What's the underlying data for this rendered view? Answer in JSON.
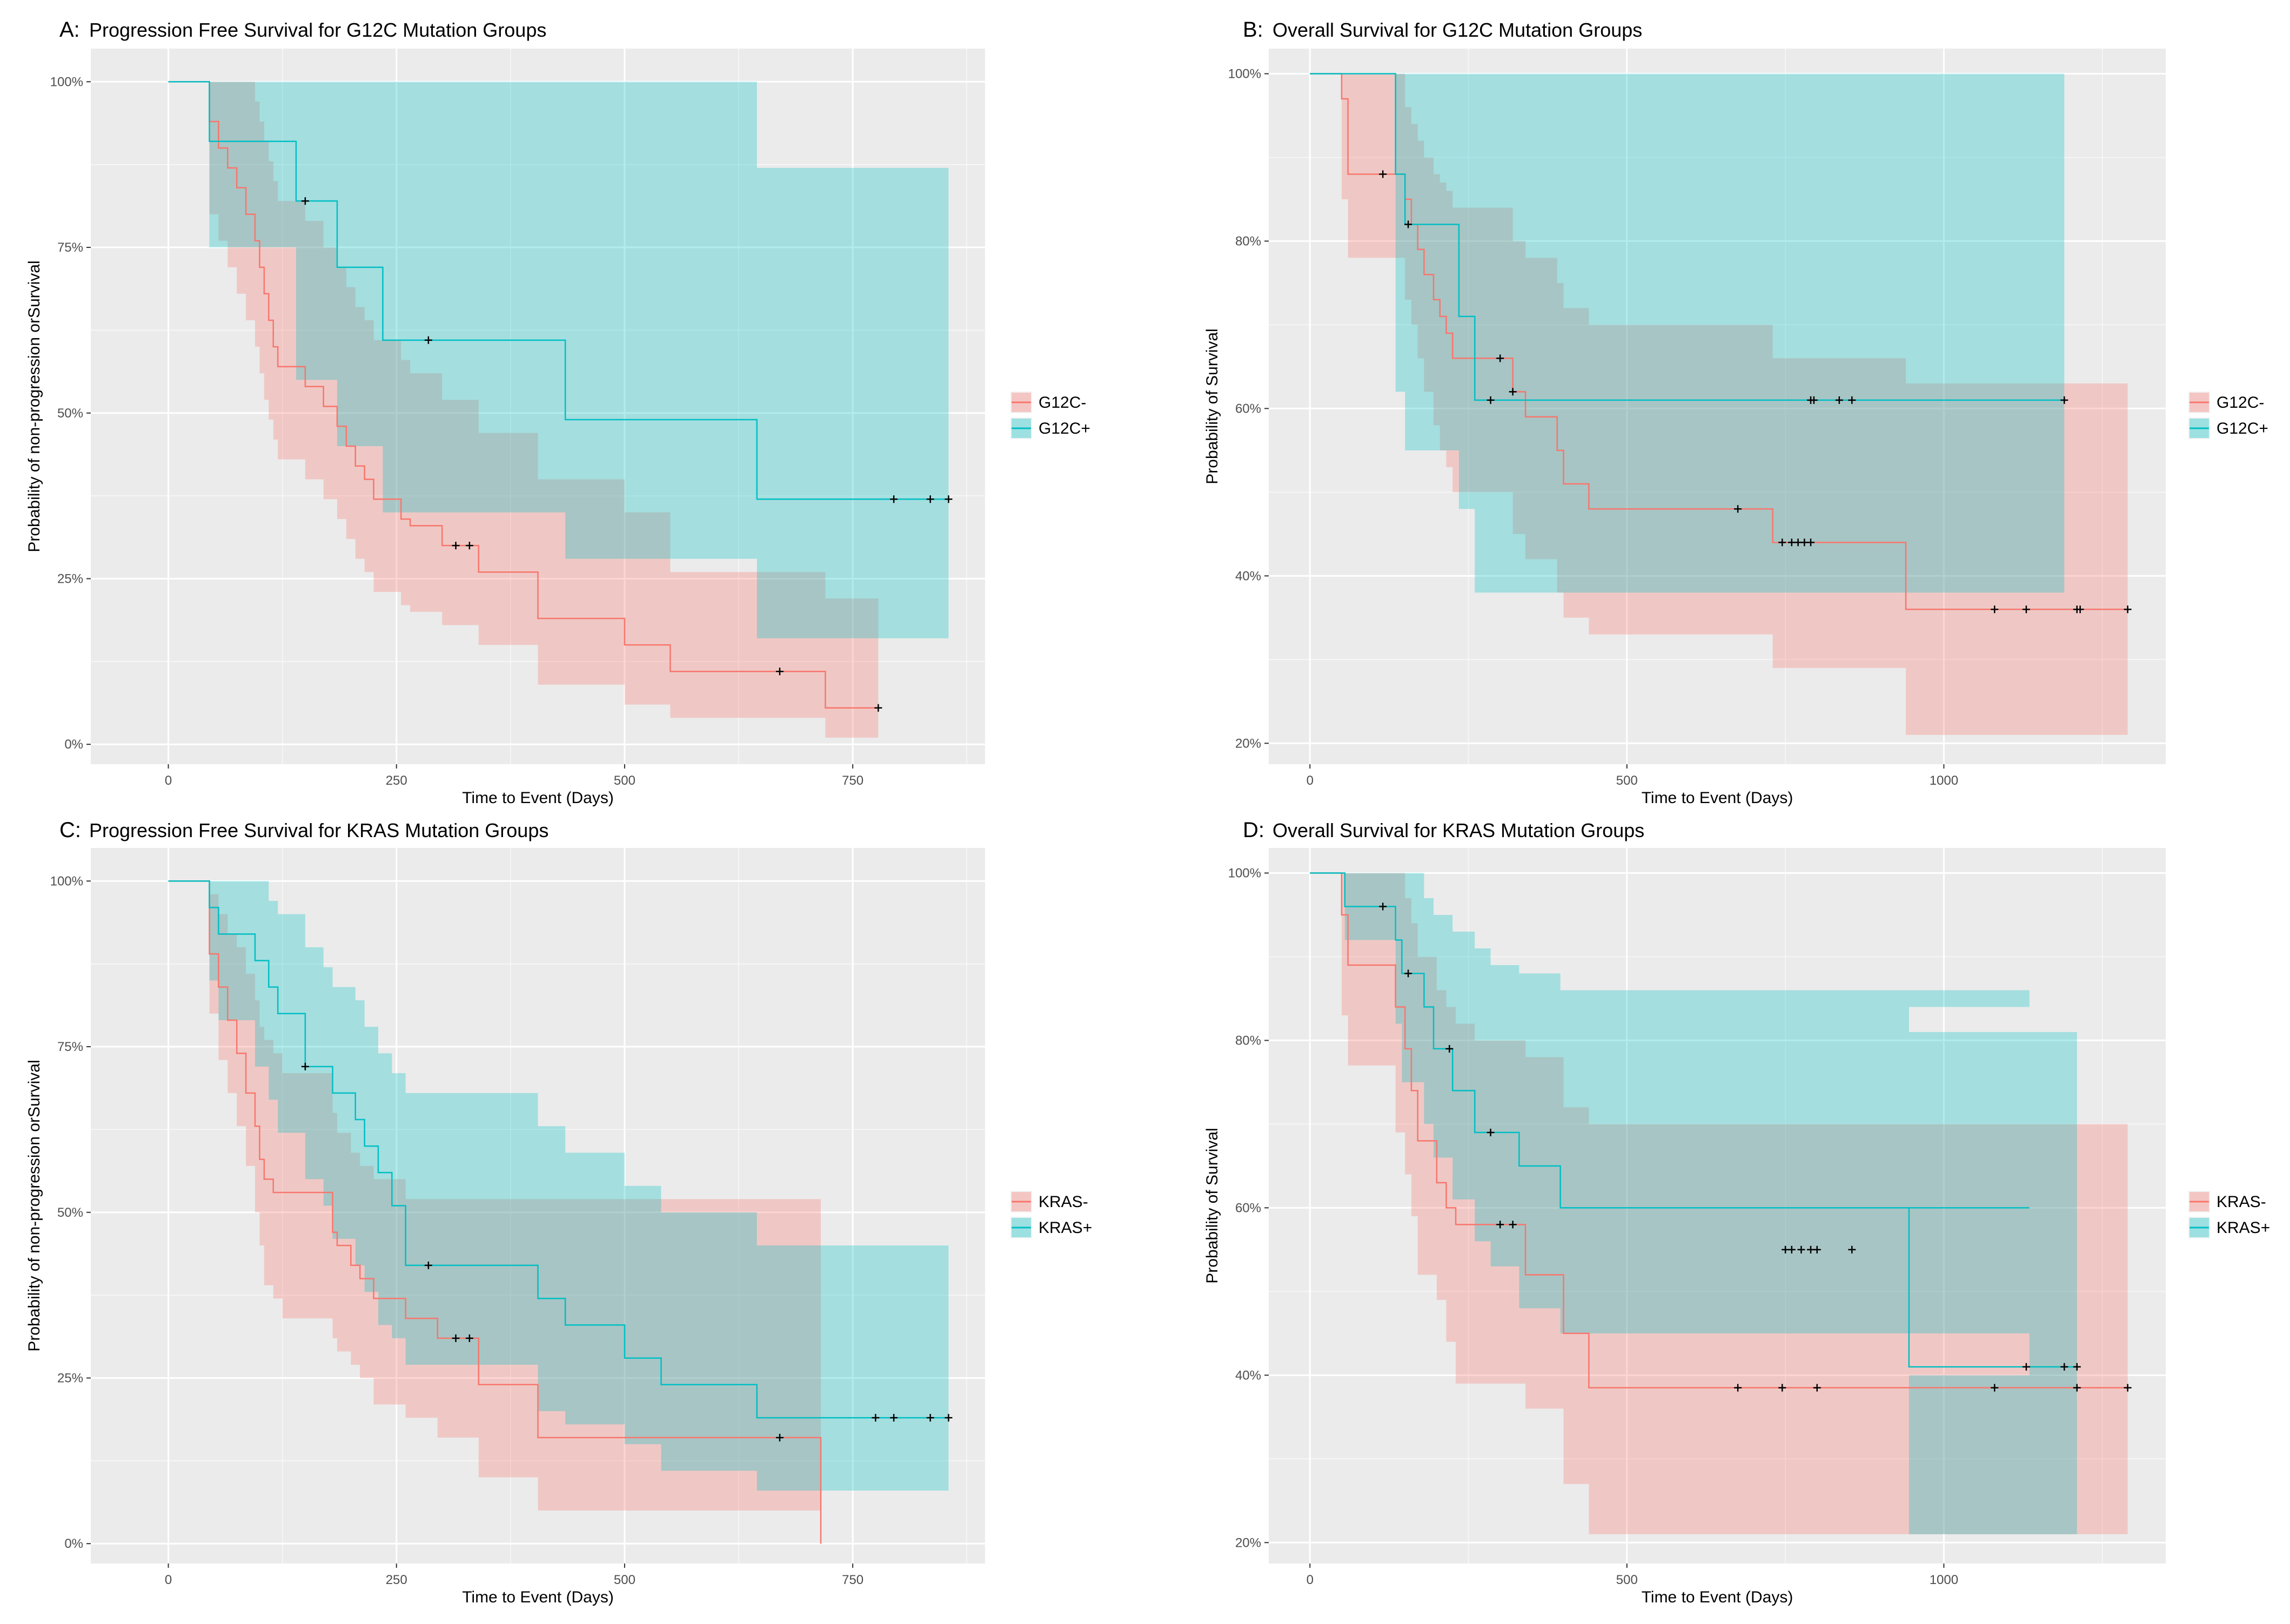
{
  "colors": {
    "panel_bg": "#ebebeb",
    "grid": "#ffffff",
    "group_neg": "#f8766d",
    "group_pos": "#00bfc4",
    "band_neg": "#f5c6c4",
    "band_pos": "#a6dfe0",
    "band_overlap": "#b0c0bc",
    "censor": "#000000"
  },
  "chart_data": [
    {
      "id": "A",
      "type": "line",
      "subtype": "kaplan-meier",
      "letter": "A:",
      "title": "Progression Free Survival for G12C Mutation Groups",
      "xlabel": "Time to Event (Days)",
      "ylabel": "Probability of non-progression orSurvival",
      "xlim": [
        -85,
        895
      ],
      "ylim": [
        -3,
        105
      ],
      "xticks": [
        0,
        250,
        500,
        750
      ],
      "yticks": [
        0,
        25,
        50,
        75,
        100
      ],
      "yticklabels": [
        "0%",
        "25%",
        "50%",
        "75%",
        "100%"
      ],
      "series": [
        {
          "name": "G12C-",
          "step_x": [
            0,
            45,
            55,
            65,
            75,
            85,
            95,
            100,
            105,
            110,
            115,
            120,
            150,
            170,
            185,
            195,
            205,
            215,
            225,
            255,
            265,
            300,
            340,
            405,
            500,
            550,
            640,
            720,
            778
          ],
          "step_y": [
            100,
            94,
            90,
            87,
            84,
            80,
            76,
            72,
            68,
            64,
            60,
            57,
            54,
            51,
            48,
            45,
            42,
            40,
            37,
            34,
            33,
            30,
            26,
            19,
            15,
            11,
            11,
            5.5,
            5.5
          ],
          "lower": [
            100,
            80,
            76,
            72,
            68,
            64,
            60,
            56,
            52,
            49,
            46,
            43,
            40,
            37,
            34,
            31,
            28,
            26,
            23,
            21,
            20,
            18,
            15,
            9,
            6,
            4,
            4,
            1,
            1
          ],
          "upper": [
            100,
            100,
            100,
            100,
            100,
            100,
            97,
            94,
            91,
            88,
            85,
            82,
            79,
            75,
            72,
            69,
            66,
            64,
            61,
            58,
            56,
            52,
            47,
            40,
            35,
            26,
            26,
            22,
            22
          ],
          "censor_x": [
            315,
            330,
            670,
            778
          ],
          "censor_y": [
            30,
            30,
            11,
            5.5
          ]
        },
        {
          "name": "G12C+",
          "step_x": [
            0,
            45,
            140,
            185,
            235,
            435,
            645,
            855
          ],
          "step_y": [
            100,
            91,
            82,
            72,
            61,
            49,
            37,
            37
          ],
          "lower": [
            100,
            75,
            55,
            45,
            35,
            28,
            16,
            16
          ],
          "upper": [
            100,
            100,
            100,
            100,
            100,
            100,
            87,
            87
          ],
          "censor_x": [
            150,
            285,
            795,
            835,
            855
          ],
          "censor_y": [
            82,
            61,
            37,
            37,
            37
          ]
        }
      ]
    },
    {
      "id": "B",
      "type": "line",
      "subtype": "kaplan-meier",
      "letter": "B:",
      "title": "Overall Survival for G12C Mutation Groups",
      "xlabel": "Time to Event (Days)",
      "ylabel": "Probability of Survival",
      "xlim": [
        -65,
        1350
      ],
      "ylim": [
        17.5,
        103
      ],
      "xticks": [
        0,
        500,
        1000
      ],
      "yticks": [
        20,
        40,
        60,
        80,
        100
      ],
      "yticklabels": [
        "20%",
        "40%",
        "60%",
        "80%",
        "100%"
      ],
      "series": [
        {
          "name": "G12C-",
          "step_x": [
            0,
            50,
            60,
            140,
            150,
            160,
            170,
            180,
            195,
            205,
            215,
            225,
            235,
            320,
            340,
            390,
            400,
            440,
            680,
            730,
            940,
            1290
          ],
          "step_y": [
            100,
            97,
            88,
            88,
            85,
            82,
            79,
            76,
            73,
            71,
            69,
            66,
            66,
            62,
            59,
            55,
            51,
            48,
            48,
            44,
            36,
            36
          ],
          "lower": [
            100,
            85,
            78,
            78,
            73,
            70,
            66,
            62,
            58,
            55,
            53,
            50,
            50,
            45,
            42,
            38,
            35,
            33,
            33,
            29,
            21,
            21
          ],
          "upper": [
            100,
            100,
            100,
            100,
            96,
            94,
            92,
            90,
            88,
            87,
            86,
            84,
            84,
            80,
            78,
            75,
            72,
            70,
            70,
            66,
            63,
            63
          ],
          "censor_x": [
            115,
            300,
            320,
            675,
            745,
            760,
            770,
            780,
            790,
            1080,
            1130,
            1210,
            1215,
            1290
          ],
          "censor_y": [
            88,
            66,
            62,
            48,
            44,
            44,
            44,
            44,
            44,
            36,
            36,
            36,
            36,
            36
          ]
        },
        {
          "name": "G12C+",
          "step_x": [
            0,
            135,
            150,
            235,
            260,
            1190
          ],
          "step_y": [
            100,
            88,
            82,
            71,
            61,
            61
          ],
          "lower": [
            100,
            62,
            55,
            48,
            38,
            38
          ],
          "upper": [
            100,
            100,
            100,
            100,
            100,
            100
          ],
          "censor_x": [
            155,
            285,
            790,
            795,
            835,
            855,
            1190
          ],
          "censor_y": [
            82,
            61,
            61,
            61,
            61,
            61,
            61
          ]
        }
      ]
    },
    {
      "id": "C",
      "type": "line",
      "subtype": "kaplan-meier",
      "letter": "C:",
      "title": "Progression Free Survival for KRAS Mutation Groups",
      "xlabel": "Time to Event (Days)",
      "ylabel": "Probability of non-progression orSurvival",
      "xlim": [
        -85,
        895
      ],
      "ylim": [
        -3,
        105
      ],
      "xticks": [
        0,
        250,
        500,
        750
      ],
      "yticks": [
        0,
        25,
        50,
        75,
        100
      ],
      "yticklabels": [
        "0%",
        "25%",
        "50%",
        "75%",
        "100%"
      ],
      "series": [
        {
          "name": "KRAS-",
          "step_x": [
            0,
            45,
            55,
            65,
            75,
            85,
            95,
            100,
            105,
            115,
            125,
            180,
            185,
            200,
            210,
            225,
            260,
            295,
            340,
            405,
            715
          ],
          "step_y": [
            100,
            89,
            84,
            79,
            74,
            68,
            63,
            58,
            55,
            53,
            53,
            47,
            45,
            42,
            40,
            37,
            34,
            31,
            24,
            16,
            0
          ],
          "lower": [
            100,
            80,
            73,
            68,
            63,
            57,
            50,
            45,
            39,
            37,
            34,
            31,
            29,
            27,
            25,
            21,
            19,
            16,
            10,
            5,
            5
          ],
          "upper": [
            100,
            98,
            95,
            92,
            90,
            86,
            82,
            78,
            76,
            74,
            71,
            65,
            62,
            59,
            57,
            55,
            52,
            52,
            52,
            52,
            52
          ],
          "censor_x": [
            315,
            330,
            670
          ],
          "censor_y": [
            31,
            31,
            16
          ]
        },
        {
          "name": "KRAS+",
          "step_x": [
            0,
            45,
            55,
            65,
            95,
            110,
            120,
            150,
            170,
            180,
            205,
            215,
            230,
            245,
            260,
            405,
            435,
            500,
            540,
            645,
            855
          ],
          "step_y": [
            100,
            96,
            92,
            92,
            88,
            84,
            80,
            72,
            72,
            68,
            64,
            60,
            56,
            51,
            42,
            37,
            33,
            28,
            24,
            19,
            19
          ],
          "lower": [
            100,
            85,
            79,
            79,
            72,
            67,
            62,
            55,
            51,
            46,
            42,
            38,
            33,
            31,
            27,
            20,
            18,
            15,
            11,
            8,
            8
          ],
          "upper": [
            100,
            100,
            100,
            100,
            100,
            97,
            95,
            90,
            87,
            84,
            82,
            78,
            74,
            71,
            68,
            63,
            59,
            54,
            50,
            45,
            45
          ],
          "censor_x": [
            150,
            285,
            775,
            795,
            835,
            855
          ],
          "censor_y": [
            72,
            42,
            19,
            19,
            19,
            19
          ]
        }
      ]
    },
    {
      "id": "D",
      "type": "line",
      "subtype": "kaplan-meier",
      "letter": "D:",
      "title": "Overall Survival for KRAS Mutation Groups",
      "xlabel": "Time to Event (Days)",
      "ylabel": "Probability of Survival",
      "xlim": [
        -65,
        1350
      ],
      "ylim": [
        17.5,
        103
      ],
      "xticks": [
        0,
        500,
        1000
      ],
      "yticks": [
        20,
        40,
        60,
        80,
        100
      ],
      "yticklabels": [
        "20%",
        "40%",
        "60%",
        "80%",
        "100%"
      ],
      "series": [
        {
          "name": "KRAS-",
          "step_x": [
            0,
            50,
            60,
            135,
            150,
            160,
            170,
            200,
            215,
            230,
            260,
            340,
            400,
            440,
            1290
          ],
          "step_y": [
            100,
            95,
            89,
            84,
            79,
            74,
            68,
            63,
            60,
            58,
            58,
            52,
            45,
            38.5,
            38.5
          ],
          "lower": [
            100,
            83,
            77,
            69,
            64,
            59,
            52,
            49,
            44,
            39,
            39,
            36,
            27,
            21,
            21
          ],
          "upper": [
            100,
            100,
            100,
            100,
            97,
            94,
            90,
            86,
            84,
            82,
            80,
            78,
            72,
            70,
            70
          ],
          "censor_x": [
            300,
            320,
            675,
            745,
            800,
            1080,
            1210,
            1290
          ],
          "censor_y": [
            58,
            58,
            38.5,
            38.5,
            38.5,
            38.5,
            38.5,
            38.5
          ]
        },
        {
          "name": "KRAS+",
          "step_x": [
            0,
            55,
            135,
            145,
            180,
            195,
            225,
            260,
            285,
            330,
            395,
            1135,
            945,
            1210
          ],
          "step_y": [
            100,
            96,
            92,
            88,
            84,
            79,
            74,
            69,
            69,
            65,
            60,
            60,
            41,
            41
          ],
          "lower": [
            100,
            92,
            82,
            75,
            70,
            66,
            61,
            56,
            53,
            48,
            45,
            40,
            21,
            21
          ],
          "upper": [
            100,
            100,
            100,
            100,
            97,
            95,
            93,
            91,
            89,
            88,
            86,
            84,
            81,
            81
          ],
          "censor_x": [
            115,
            155,
            220,
            285,
            750,
            760,
            775,
            790,
            800,
            855,
            1130,
            1190,
            1210
          ],
          "censor_y": [
            96,
            88,
            79,
            69,
            55,
            55,
            55,
            55,
            55,
            55,
            41,
            41,
            41
          ]
        }
      ]
    }
  ]
}
